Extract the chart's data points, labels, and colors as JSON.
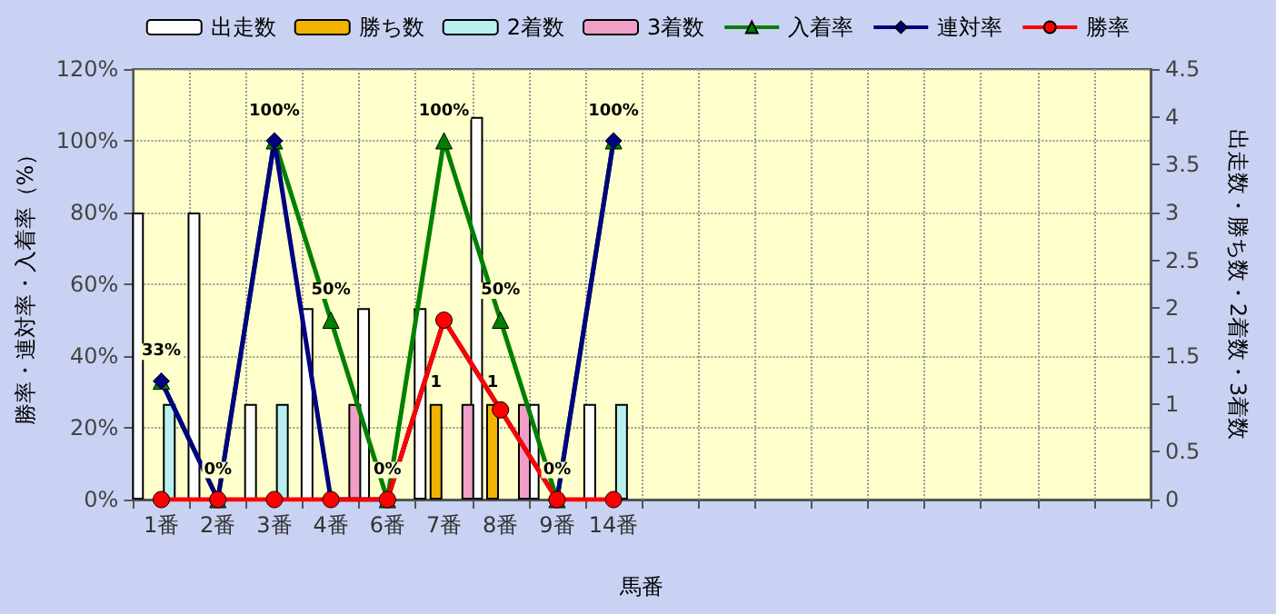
{
  "chart_data": {
    "type": "bar",
    "xlabel": "馬番",
    "ylabel": "勝率・連対率・入着率（%）",
    "y2label": "出走数・勝ち数・2着数・3着数",
    "categories": [
      "1番",
      "2番",
      "3番",
      "4番",
      "6番",
      "7番",
      "8番",
      "9番",
      "14番",
      null,
      null,
      null,
      null,
      null,
      null,
      null,
      null,
      null
    ],
    "series": [
      {
        "name": "出走数",
        "axis": "y2",
        "color": "#ffffff",
        "values": [
          3,
          3,
          1,
          2,
          2,
          2,
          4,
          1,
          1,
          null,
          null,
          null,
          null,
          null,
          null,
          null,
          null,
          null
        ]
      },
      {
        "name": "勝ち数",
        "axis": "y2",
        "color": "#f0b400",
        "values": [
          0,
          0,
          0,
          0,
          0,
          1,
          1,
          0,
          0,
          null,
          null,
          null,
          null,
          null,
          null,
          null,
          null,
          null
        ],
        "value_labels": [
          null,
          null,
          null,
          null,
          null,
          "1",
          "1",
          null,
          null,
          null,
          null,
          null,
          null,
          null,
          null,
          null,
          null,
          null
        ]
      },
      {
        "name": "2着数",
        "axis": "y2",
        "color": "#b8f0f0",
        "values": [
          1,
          0,
          1,
          0,
          0,
          0,
          0,
          0,
          1,
          null,
          null,
          null,
          null,
          null,
          null,
          null,
          null,
          null
        ]
      },
      {
        "name": "3着数",
        "axis": "y2",
        "color": "#f0a0c8",
        "values": [
          0,
          0,
          0,
          1,
          0,
          1,
          1,
          0,
          0,
          null,
          null,
          null,
          null,
          null,
          null,
          null,
          null,
          null
        ]
      },
      {
        "name": "入着率",
        "type": "line",
        "color": "#008000",
        "marker": "triangle",
        "values": [
          33,
          0,
          100,
          50,
          0,
          100,
          50,
          0,
          100,
          null,
          null,
          null,
          null,
          null,
          null,
          null,
          null,
          null
        ],
        "value_labels": [
          "33%",
          "0%",
          "100%",
          "50%",
          "0%",
          "100%",
          "50%",
          "0%",
          "100%",
          null,
          null,
          null,
          null,
          null,
          null,
          null,
          null,
          null
        ]
      },
      {
        "name": "連対率",
        "type": "line",
        "color": "#000080",
        "marker": "diamond",
        "values": [
          33,
          0,
          100,
          0,
          0,
          50,
          25,
          0,
          100,
          null,
          null,
          null,
          null,
          null,
          null,
          null,
          null,
          null
        ]
      },
      {
        "name": "勝率",
        "type": "line",
        "color": "#ff0000",
        "marker": "circle",
        "values": [
          0,
          0,
          0,
          0,
          0,
          50,
          25,
          0,
          0,
          null,
          null,
          null,
          null,
          null,
          null,
          null,
          null,
          null
        ]
      }
    ],
    "ylim": [
      0,
      120
    ],
    "yticks": [
      {
        "value": 0,
        "label": "0%"
      },
      {
        "value": 20,
        "label": "20%"
      },
      {
        "value": 40,
        "label": "40%"
      },
      {
        "value": 60,
        "label": "60%"
      },
      {
        "value": 80,
        "label": "80%"
      },
      {
        "value": 100,
        "label": "100%"
      },
      {
        "value": 120,
        "label": "120%"
      }
    ],
    "y2lim": [
      0,
      4.5
    ],
    "y2ticks": [
      0,
      0.5,
      1,
      1.5,
      2,
      2.5,
      3,
      3.5,
      4,
      4.5
    ],
    "grid": true,
    "legend": "top"
  }
}
